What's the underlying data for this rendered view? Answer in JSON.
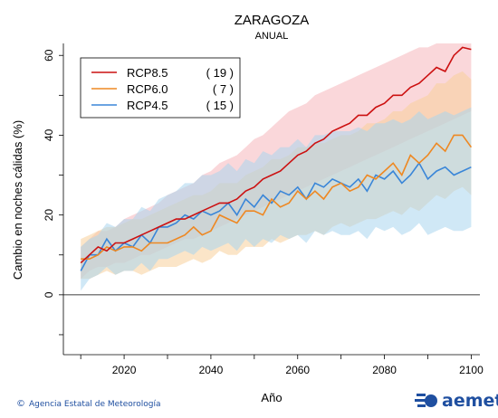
{
  "chart_data": {
    "type": "line",
    "title": "ZARAGOZA",
    "subtitle": "ANUAL",
    "xlabel": "Año",
    "ylabel": "Cambio en noches cálidas (%)",
    "xlim": [
      2006,
      2102
    ],
    "ylim": [
      -15,
      63
    ],
    "xticks": [
      2020,
      2040,
      2060,
      2080,
      2100
    ],
    "yticks": [
      0,
      20,
      40,
      60
    ],
    "legend_position": "top-left",
    "colors": {
      "rcp85": "#cc1111",
      "rcp60": "#ee8822",
      "rcp45": "#3a86d8",
      "band85": "#f6b6bc",
      "band60": "#f8cf9a",
      "band45": "#a9d6ee"
    },
    "x": [
      2010,
      2012,
      2014,
      2016,
      2018,
      2020,
      2022,
      2024,
      2026,
      2028,
      2030,
      2032,
      2034,
      2036,
      2038,
      2040,
      2042,
      2044,
      2046,
      2048,
      2050,
      2052,
      2054,
      2056,
      2058,
      2060,
      2062,
      2064,
      2066,
      2068,
      2070,
      2072,
      2074,
      2076,
      2078,
      2080,
      2082,
      2084,
      2086,
      2088,
      2090,
      2092,
      2094,
      2096,
      2098,
      2100
    ],
    "series": [
      {
        "name": "RCP8.5",
        "count": "( 19 )",
        "values": [
          8,
          10,
          12,
          11,
          13,
          13,
          14,
          15,
          16,
          17,
          18,
          19,
          19,
          20,
          21,
          22,
          23,
          23,
          24,
          26,
          27,
          29,
          30,
          31,
          33,
          35,
          36,
          38,
          39,
          41,
          42,
          43,
          45,
          45,
          47,
          48,
          50,
          50,
          52,
          53,
          55,
          57,
          56,
          60,
          62,
          61.5
        ],
        "upper": [
          12,
          14,
          16,
          16,
          17,
          19,
          20,
          21,
          22,
          23,
          25,
          26,
          27,
          28,
          30,
          31,
          33,
          34,
          35,
          37,
          39,
          40,
          42,
          44,
          46,
          47,
          48,
          50,
          51,
          52,
          53,
          54,
          55,
          56,
          57,
          58,
          59,
          60,
          61,
          62,
          62,
          63,
          63,
          63,
          63,
          63
        ],
        "lower": [
          4,
          6,
          7,
          7,
          8,
          8,
          9,
          10,
          10,
          11,
          12,
          13,
          14,
          14,
          15,
          16,
          17,
          18,
          19,
          20,
          21,
          22,
          23,
          24,
          25,
          26,
          27,
          28,
          29,
          30,
          31,
          32,
          33,
          34,
          35,
          36,
          37,
          38,
          39,
          40,
          41,
          42,
          43,
          44,
          45,
          46
        ]
      },
      {
        "name": "RCP6.0",
        "count": "(  7 )",
        "values": [
          9,
          9,
          10,
          12,
          11,
          12,
          12,
          11,
          13,
          13,
          13,
          14,
          15,
          17,
          15,
          16,
          20,
          19,
          18,
          21,
          21,
          20,
          24,
          22,
          23,
          26,
          24,
          26,
          24,
          27,
          28,
          26,
          27,
          30,
          29,
          31,
          33,
          30,
          35,
          33,
          35,
          38,
          36,
          40,
          40,
          37
        ],
        "upper": [
          14,
          15,
          16,
          17,
          17,
          18,
          19,
          19,
          20,
          21,
          22,
          23,
          24,
          25,
          25,
          26,
          28,
          28,
          28,
          30,
          31,
          32,
          34,
          34,
          35,
          37,
          37,
          38,
          38,
          39,
          40,
          40,
          41,
          43,
          43,
          44,
          46,
          46,
          48,
          49,
          50,
          53,
          53,
          55,
          56,
          54
        ],
        "lower": [
          4,
          4,
          5,
          6,
          5,
          6,
          6,
          5,
          6,
          7,
          7,
          7,
          8,
          9,
          8,
          9,
          11,
          10,
          10,
          12,
          12,
          12,
          14,
          13,
          14,
          15,
          15,
          16,
          15,
          17,
          18,
          17,
          18,
          19,
          19,
          20,
          21,
          20,
          22,
          21,
          23,
          25,
          24,
          26,
          27,
          25
        ]
      },
      {
        "name": "RCP4.5",
        "count": "( 15 )",
        "values": [
          6,
          10,
          10,
          14,
          11,
          13,
          12,
          15,
          13,
          17,
          17,
          18,
          20,
          19,
          21,
          20,
          21,
          23,
          20,
          24,
          22,
          25,
          23,
          26,
          25,
          27,
          24,
          28,
          27,
          29,
          28,
          27,
          29,
          26,
          30,
          29,
          31,
          28,
          30,
          33,
          29,
          31,
          32,
          30,
          31,
          32
        ],
        "upper": [
          12,
          14,
          15,
          18,
          17,
          19,
          19,
          22,
          21,
          24,
          25,
          26,
          28,
          28,
          30,
          30,
          31,
          33,
          31,
          34,
          33,
          36,
          35,
          37,
          37,
          39,
          37,
          40,
          40,
          41,
          41,
          41,
          42,
          41,
          43,
          43,
          44,
          43,
          44,
          46,
          44,
          45,
          46,
          45,
          46,
          47
        ],
        "lower": [
          1,
          4,
          5,
          7,
          5,
          6,
          6,
          8,
          6,
          9,
          9,
          10,
          11,
          10,
          12,
          11,
          12,
          13,
          11,
          14,
          12,
          14,
          13,
          15,
          14,
          15,
          13,
          16,
          15,
          16,
          15,
          15,
          16,
          14,
          17,
          16,
          17,
          15,
          16,
          18,
          15,
          16,
          17,
          16,
          16,
          17
        ]
      }
    ]
  },
  "footer": {
    "credit": "Agencia Estatal de Meteorología",
    "logo": "aemet"
  }
}
